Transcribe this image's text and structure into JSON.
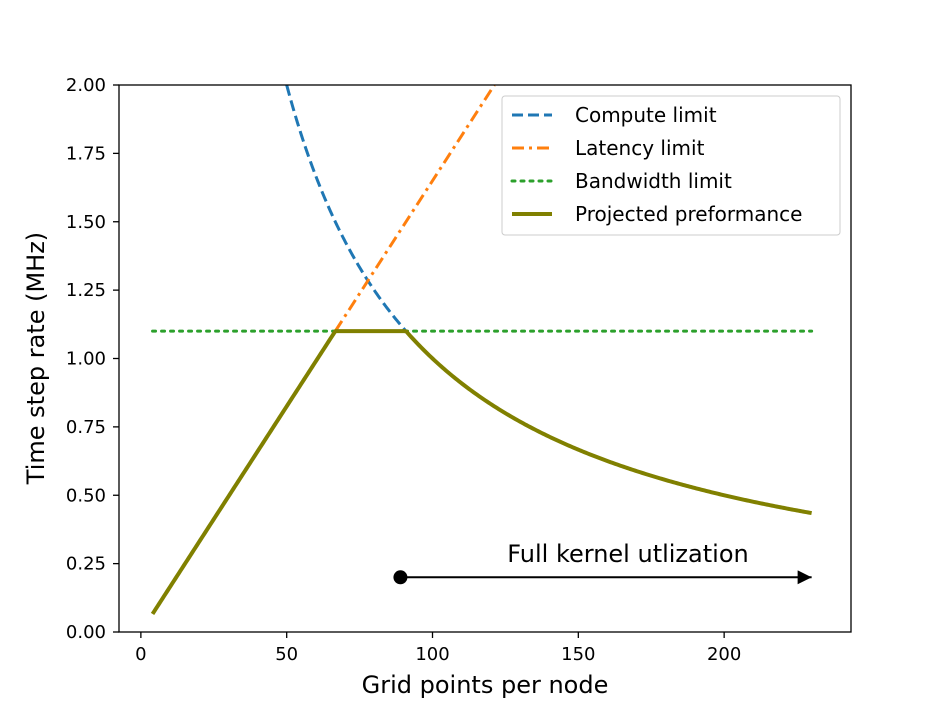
{
  "chart_data": {
    "type": "line",
    "title": "",
    "xlabel": "Grid points per node",
    "ylabel": "Time step rate (MHz)",
    "xlim": [
      -7.5,
      243.5
    ],
    "ylim": [
      0.0,
      2.0
    ],
    "xticks": [
      0,
      50,
      100,
      150,
      200
    ],
    "xtick_labels": [
      "0",
      "50",
      "100",
      "150",
      "200"
    ],
    "yticks": [
      0.0,
      0.25,
      0.5,
      0.75,
      1.0,
      1.25,
      1.5,
      1.75,
      2.0
    ],
    "ytick_labels": [
      "0.00",
      "0.25",
      "0.50",
      "0.75",
      "1.00",
      "1.25",
      "1.50",
      "1.75",
      "2.00"
    ],
    "grid": false,
    "legend_position": "top-right",
    "series": [
      {
        "name": "Compute limit",
        "style": "dashed",
        "color": "#1f77b4",
        "model": "k/x",
        "k": 100,
        "x_range": [
          50,
          90.9
        ]
      },
      {
        "name": "Latency limit",
        "style": "dashdot",
        "color": "#ff7f0e",
        "model": "k*x",
        "k": 0.0165,
        "x_range": [
          66.7,
          121.2
        ]
      },
      {
        "name": "Bandwidth limit",
        "style": "dotted",
        "color": "#2ca02c",
        "model": "constant",
        "value": 1.1,
        "x_range": [
          4,
          230
        ]
      },
      {
        "name": "Projected preformance",
        "style": "solid",
        "color": "#808000",
        "model": "min",
        "x_range": [
          4,
          230
        ]
      }
    ],
    "annotation": {
      "text": "Full kernel utlization",
      "start": [
        89,
        0.2
      ],
      "end": [
        230,
        0.2
      ],
      "color": "#000000"
    }
  }
}
